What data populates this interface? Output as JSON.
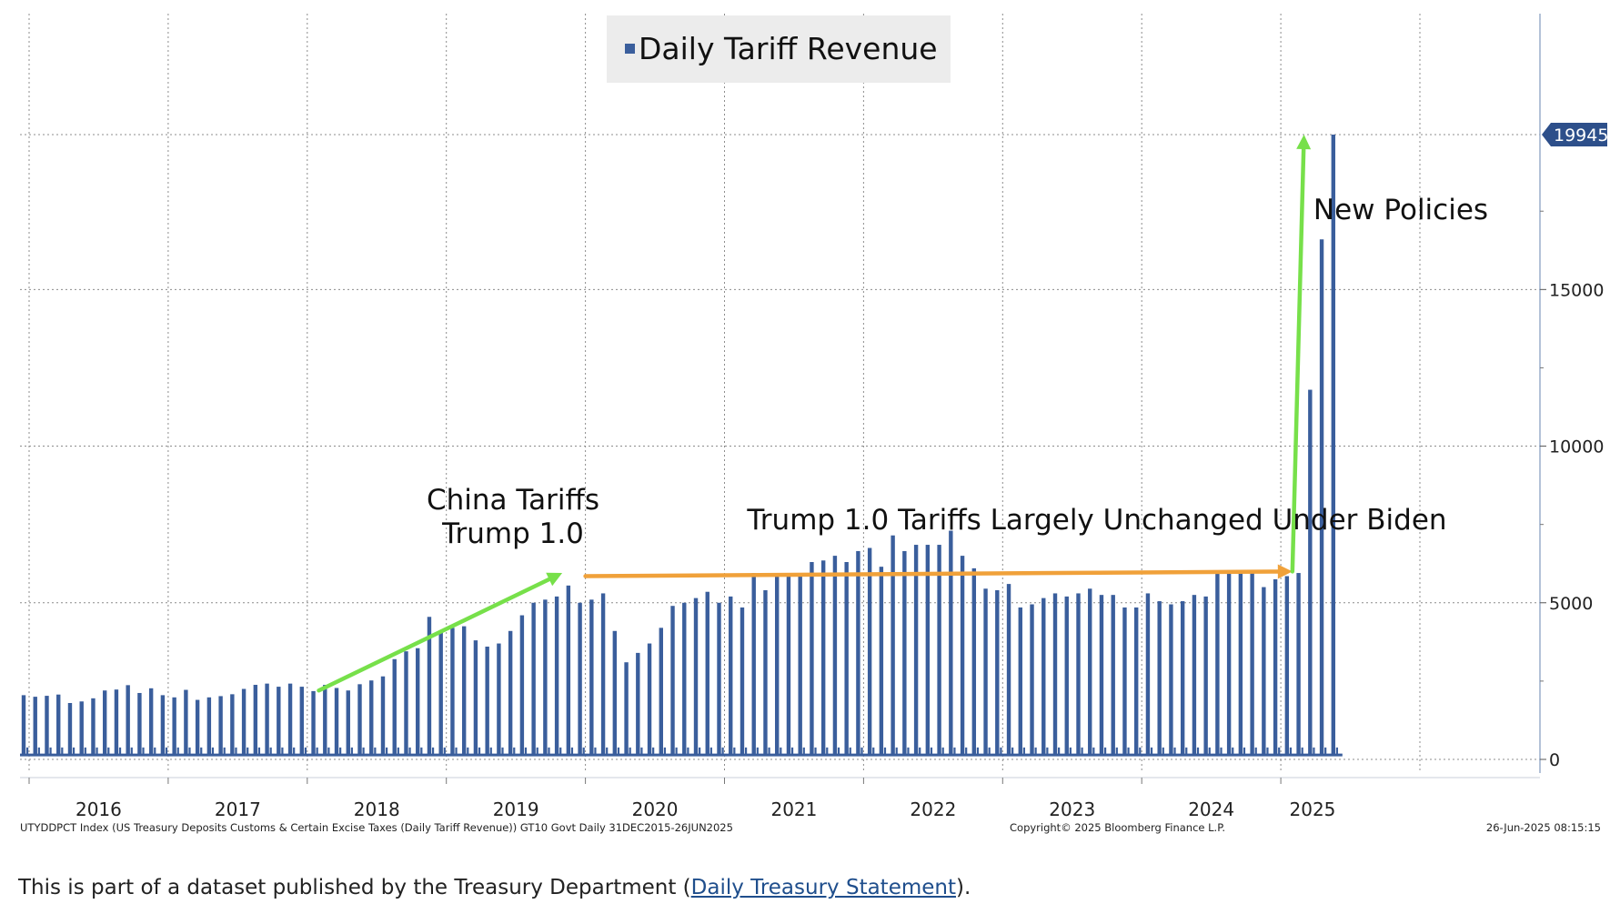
{
  "chart_data": {
    "type": "bar",
    "title": "Daily Tariff Revenue",
    "legend": {
      "label": "Daily Tariff Revenue",
      "position": "top-center"
    },
    "series": [
      {
        "name": "Daily Tariff Revenue",
        "color": "#3a5e9c",
        "monthly_peaks": [
          2050,
          2000,
          2030,
          2070,
          1800,
          1850,
          1950,
          2200,
          2230,
          2370,
          2120,
          2270,
          2050,
          1980,
          2220,
          1900,
          1980,
          2020,
          2080,
          2250,
          2380,
          2420,
          2320,
          2420,
          2320,
          2180,
          2380,
          2280,
          2200,
          2400,
          2520,
          2650,
          3200,
          3450,
          3550,
          4550,
          4100,
          4200,
          4250,
          3800,
          3600,
          3700,
          4100,
          4600,
          5000,
          5100,
          5200,
          5550,
          5000,
          5100,
          5300,
          4100,
          3100,
          3400,
          3700,
          4200,
          4900,
          5000,
          5150,
          5350,
          5000,
          5200,
          4850,
          5950,
          5400,
          5850,
          5850,
          5900,
          6300,
          6350,
          6500,
          6300,
          6650,
          6750,
          6150,
          7150,
          6650,
          6850,
          6850,
          6850,
          7300,
          6500,
          6100,
          5450,
          5400,
          5600,
          4850,
          4950,
          5150,
          5300,
          5200,
          5300,
          5450,
          5250,
          5250,
          4850,
          4850,
          5300,
          5050,
          4950,
          5050,
          5250,
          5200,
          5950,
          5950,
          5950,
          6000,
          5500,
          5750,
          5850,
          5950,
          11800,
          16600,
          19945
        ],
        "last_value": 19945
      }
    ],
    "x_axis": {
      "start": "2016-01",
      "end": "2025-06",
      "tick_labels": [
        "2016",
        "2017",
        "2018",
        "2019",
        "2020",
        "2021",
        "2022",
        "2023",
        "2024",
        "2025"
      ]
    },
    "y_axis": {
      "position": "right",
      "ylim": [
        -500,
        23000
      ],
      "ticks": [
        0,
        5000,
        10000,
        15000
      ],
      "tick_labels": [
        "0",
        "5000",
        "10000",
        "15000"
      ]
    },
    "last_value_label": "19945",
    "annotations": {
      "china_tariffs_line1": "China Tariffs",
      "china_tariffs_line2": "Trump 1.0",
      "biden": "Trump 1.0 Tariffs Largely Unchanged Under Biden",
      "new_policies": "New Policies"
    },
    "arrows": [
      {
        "name": "china-tariffs-arrow",
        "color": "#77e04a",
        "from": [
          "2018-02",
          2200
        ],
        "to": [
          "2019-11",
          5950
        ]
      },
      {
        "name": "biden-flat-arrow",
        "color": "#f0a13a",
        "from": [
          "2020-01",
          5850
        ],
        "to": [
          "2025-02",
          6000
        ]
      },
      {
        "name": "new-policies-arrow",
        "color": "#77e04a",
        "from": [
          "2025-02",
          6000
        ],
        "to": [
          "2025-03",
          19945
        ]
      }
    ],
    "footer_left": "UTYDDPCT Index (US Treasury Deposits Customs & Certain Excise Taxes (Daily Tariff Revenue)) GT10  Govt  Daily 31DEC2015-26JUN2025",
    "footer_center": "Copyright© 2025 Bloomberg Finance L.P.",
    "footer_right": "26-Jun-2025 08:15:15"
  },
  "caption": {
    "before": "This is part of a dataset published by the Treasury Department (",
    "link": "Daily Treasury Statement",
    "after": ")."
  }
}
